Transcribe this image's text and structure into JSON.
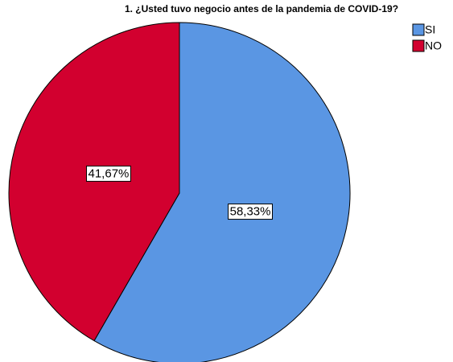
{
  "chart_data": {
    "type": "pie",
    "title": "1. ¿Usted tuvo negocio antes de la pandemia de COVID-19?",
    "categories": [
      "SI",
      "NO"
    ],
    "values": [
      58.33,
      41.67
    ],
    "value_labels": [
      "58,33%",
      "41,67%"
    ],
    "colors": [
      "#5a96e3",
      "#d2002f"
    ],
    "legend": "upper right"
  }
}
